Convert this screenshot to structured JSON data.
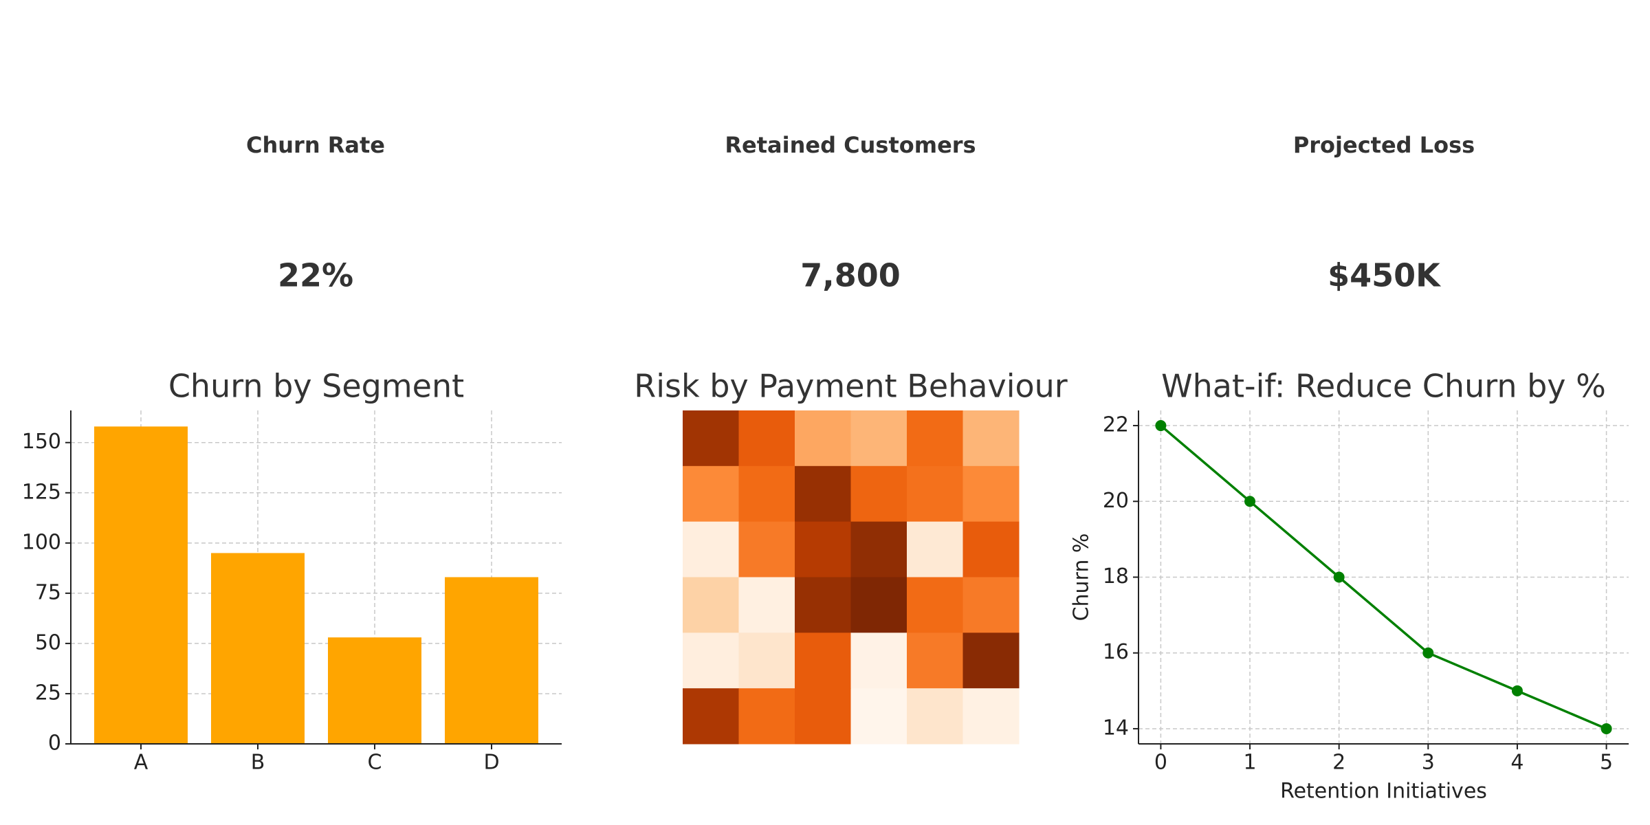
{
  "kpis": [
    {
      "label": "Churn Rate",
      "value": "22%"
    },
    {
      "label": "Retained Customers",
      "value": "7,800"
    },
    {
      "label": "Projected Loss",
      "value": "$450K"
    }
  ],
  "chart_data": [
    {
      "type": "bar",
      "title": "Churn by Segment",
      "categories": [
        "A",
        "B",
        "C",
        "D"
      ],
      "values": [
        158,
        95,
        53,
        83
      ],
      "color": "#ffa500",
      "ylim": [
        0,
        166
      ],
      "yticks": [
        0,
        25,
        50,
        75,
        100,
        125,
        150
      ],
      "grid": true
    },
    {
      "type": "heatmap",
      "title": "Risk by Payment Behaviour",
      "colormap": "Oranges",
      "values": [
        [
          0.85,
          0.65,
          0.4,
          0.35,
          0.6,
          0.35
        ],
        [
          0.5,
          0.6,
          0.88,
          0.62,
          0.58,
          0.5
        ],
        [
          0.08,
          0.55,
          0.8,
          0.9,
          0.12,
          0.65
        ],
        [
          0.25,
          0.07,
          0.88,
          0.95,
          0.6,
          0.55
        ],
        [
          0.08,
          0.15,
          0.65,
          0.05,
          0.55,
          0.92
        ],
        [
          0.82,
          0.6,
          0.65,
          0.03,
          0.15,
          0.06
        ]
      ]
    },
    {
      "type": "line",
      "title": "What-if: Reduce Churn by %",
      "x_label": "Retention Initiatives",
      "y_label": "Churn %",
      "x": [
        0,
        1,
        2,
        3,
        4,
        5
      ],
      "values": [
        22,
        20,
        18,
        16,
        15,
        14
      ],
      "color": "#008000",
      "xlim": [
        -0.25,
        5.25
      ],
      "ylim": [
        13.6,
        22.4
      ],
      "xticks": [
        0,
        1,
        2,
        3,
        4,
        5
      ],
      "yticks": [
        14,
        16,
        18,
        20,
        22
      ],
      "grid": true
    }
  ]
}
